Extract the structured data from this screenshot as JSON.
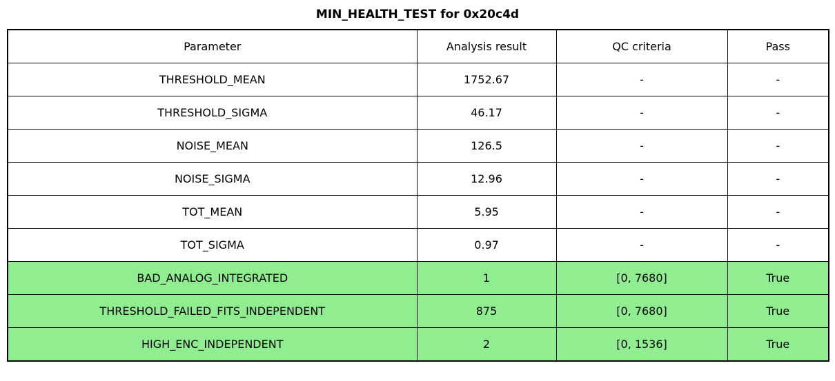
{
  "title": "MIN_HEALTH_TEST for 0x20c4d",
  "colors": {
    "pass_row_green": "#90EE90",
    "border": "#000000",
    "background": "#FFFFFF",
    "text": "#000000"
  },
  "chart_data": {
    "type": "table",
    "title": "MIN_HEALTH_TEST for 0x20c4d",
    "columns": [
      "Parameter",
      "Analysis result",
      "QC criteria",
      "Pass"
    ],
    "rows": [
      {
        "cells": [
          "THRESHOLD_MEAN",
          "1752.67",
          "-",
          "-"
        ],
        "highlight": false
      },
      {
        "cells": [
          "THRESHOLD_SIGMA",
          "46.17",
          "-",
          "-"
        ],
        "highlight": false
      },
      {
        "cells": [
          "NOISE_MEAN",
          "126.5",
          "-",
          "-"
        ],
        "highlight": false
      },
      {
        "cells": [
          "NOISE_SIGMA",
          "12.96",
          "-",
          "-"
        ],
        "highlight": false
      },
      {
        "cells": [
          "TOT_MEAN",
          "5.95",
          "-",
          "-"
        ],
        "highlight": false
      },
      {
        "cells": [
          "TOT_SIGMA",
          "0.97",
          "-",
          "-"
        ],
        "highlight": false
      },
      {
        "cells": [
          "BAD_ANALOG_INTEGRATED",
          "1",
          "[0, 7680]",
          "True"
        ],
        "highlight": true
      },
      {
        "cells": [
          "THRESHOLD_FAILED_FITS_INDEPENDENT",
          "875",
          "[0, 7680]",
          "True"
        ],
        "highlight": true
      },
      {
        "cells": [
          "HIGH_ENC_INDEPENDENT",
          "2",
          "[0, 1536]",
          "True"
        ],
        "highlight": true
      }
    ]
  }
}
